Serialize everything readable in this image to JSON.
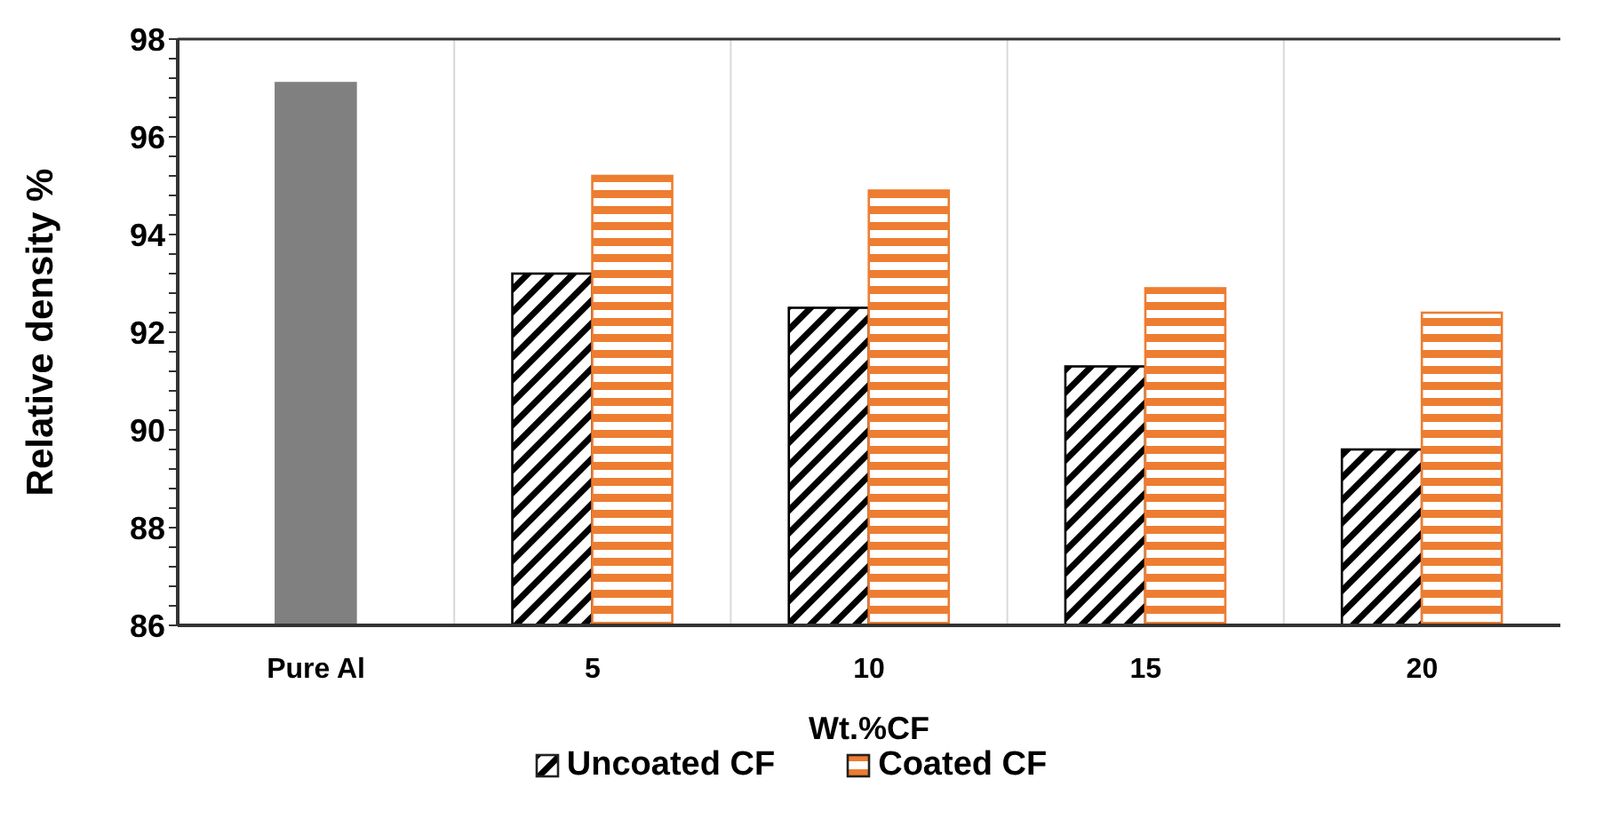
{
  "chart_data": {
    "type": "bar",
    "xlabel": "Wt.%CF",
    "ylabel": "Relative density %",
    "categories": [
      "Pure Al",
      "5",
      "10",
      "15",
      "20"
    ],
    "series": [
      {
        "name": "Uncoated CF",
        "color": "#000000",
        "colors": [
          "#808080",
          "#000000",
          "#000000",
          "#000000",
          "#000000"
        ],
        "values": [
          97.1,
          93.2,
          92.5,
          91.3,
          89.6
        ]
      },
      {
        "name": "Coated CF",
        "color": "#ed7d31",
        "values": [
          null,
          95.2,
          94.9,
          92.9,
          92.4
        ]
      }
    ],
    "ylim": [
      86,
      98
    ],
    "yticks": [
      86,
      {
        "value": 86.4,
        "label": null
      },
      {
        "value": 86.8,
        "label": null
      },
      {
        "value": 87.2,
        "label": null
      },
      {
        "value": 87.6,
        "label": null
      },
      88,
      {
        "value": 88.4,
        "label": null
      },
      {
        "value": 88.8,
        "label": null
      },
      {
        "value": 89.2,
        "label": null
      },
      {
        "value": 89.6,
        "label": null
      },
      90,
      {
        "value": 90.4,
        "label": null
      },
      {
        "value": 90.8,
        "label": null
      },
      {
        "value": 91.2,
        "label": null
      },
      {
        "value": 91.6,
        "label": null
      },
      92,
      {
        "value": 92.4,
        "label": null
      },
      {
        "value": 92.8,
        "label": null
      },
      {
        "value": 93.2,
        "label": null
      },
      {
        "value": 93.6,
        "label": null
      },
      94,
      {
        "value": 94.4,
        "label": null
      },
      {
        "value": 94.8,
        "label": null
      },
      {
        "value": 95.2,
        "label": null
      },
      {
        "value": 95.6,
        "label": null
      },
      96,
      {
        "value": 96.4,
        "label": null
      },
      {
        "value": 96.8,
        "label": null
      },
      {
        "value": 97.2,
        "label": null
      },
      {
        "value": 97.6,
        "label": null
      },
      98
    ],
    "grid": "x",
    "legend": "bottom"
  }
}
